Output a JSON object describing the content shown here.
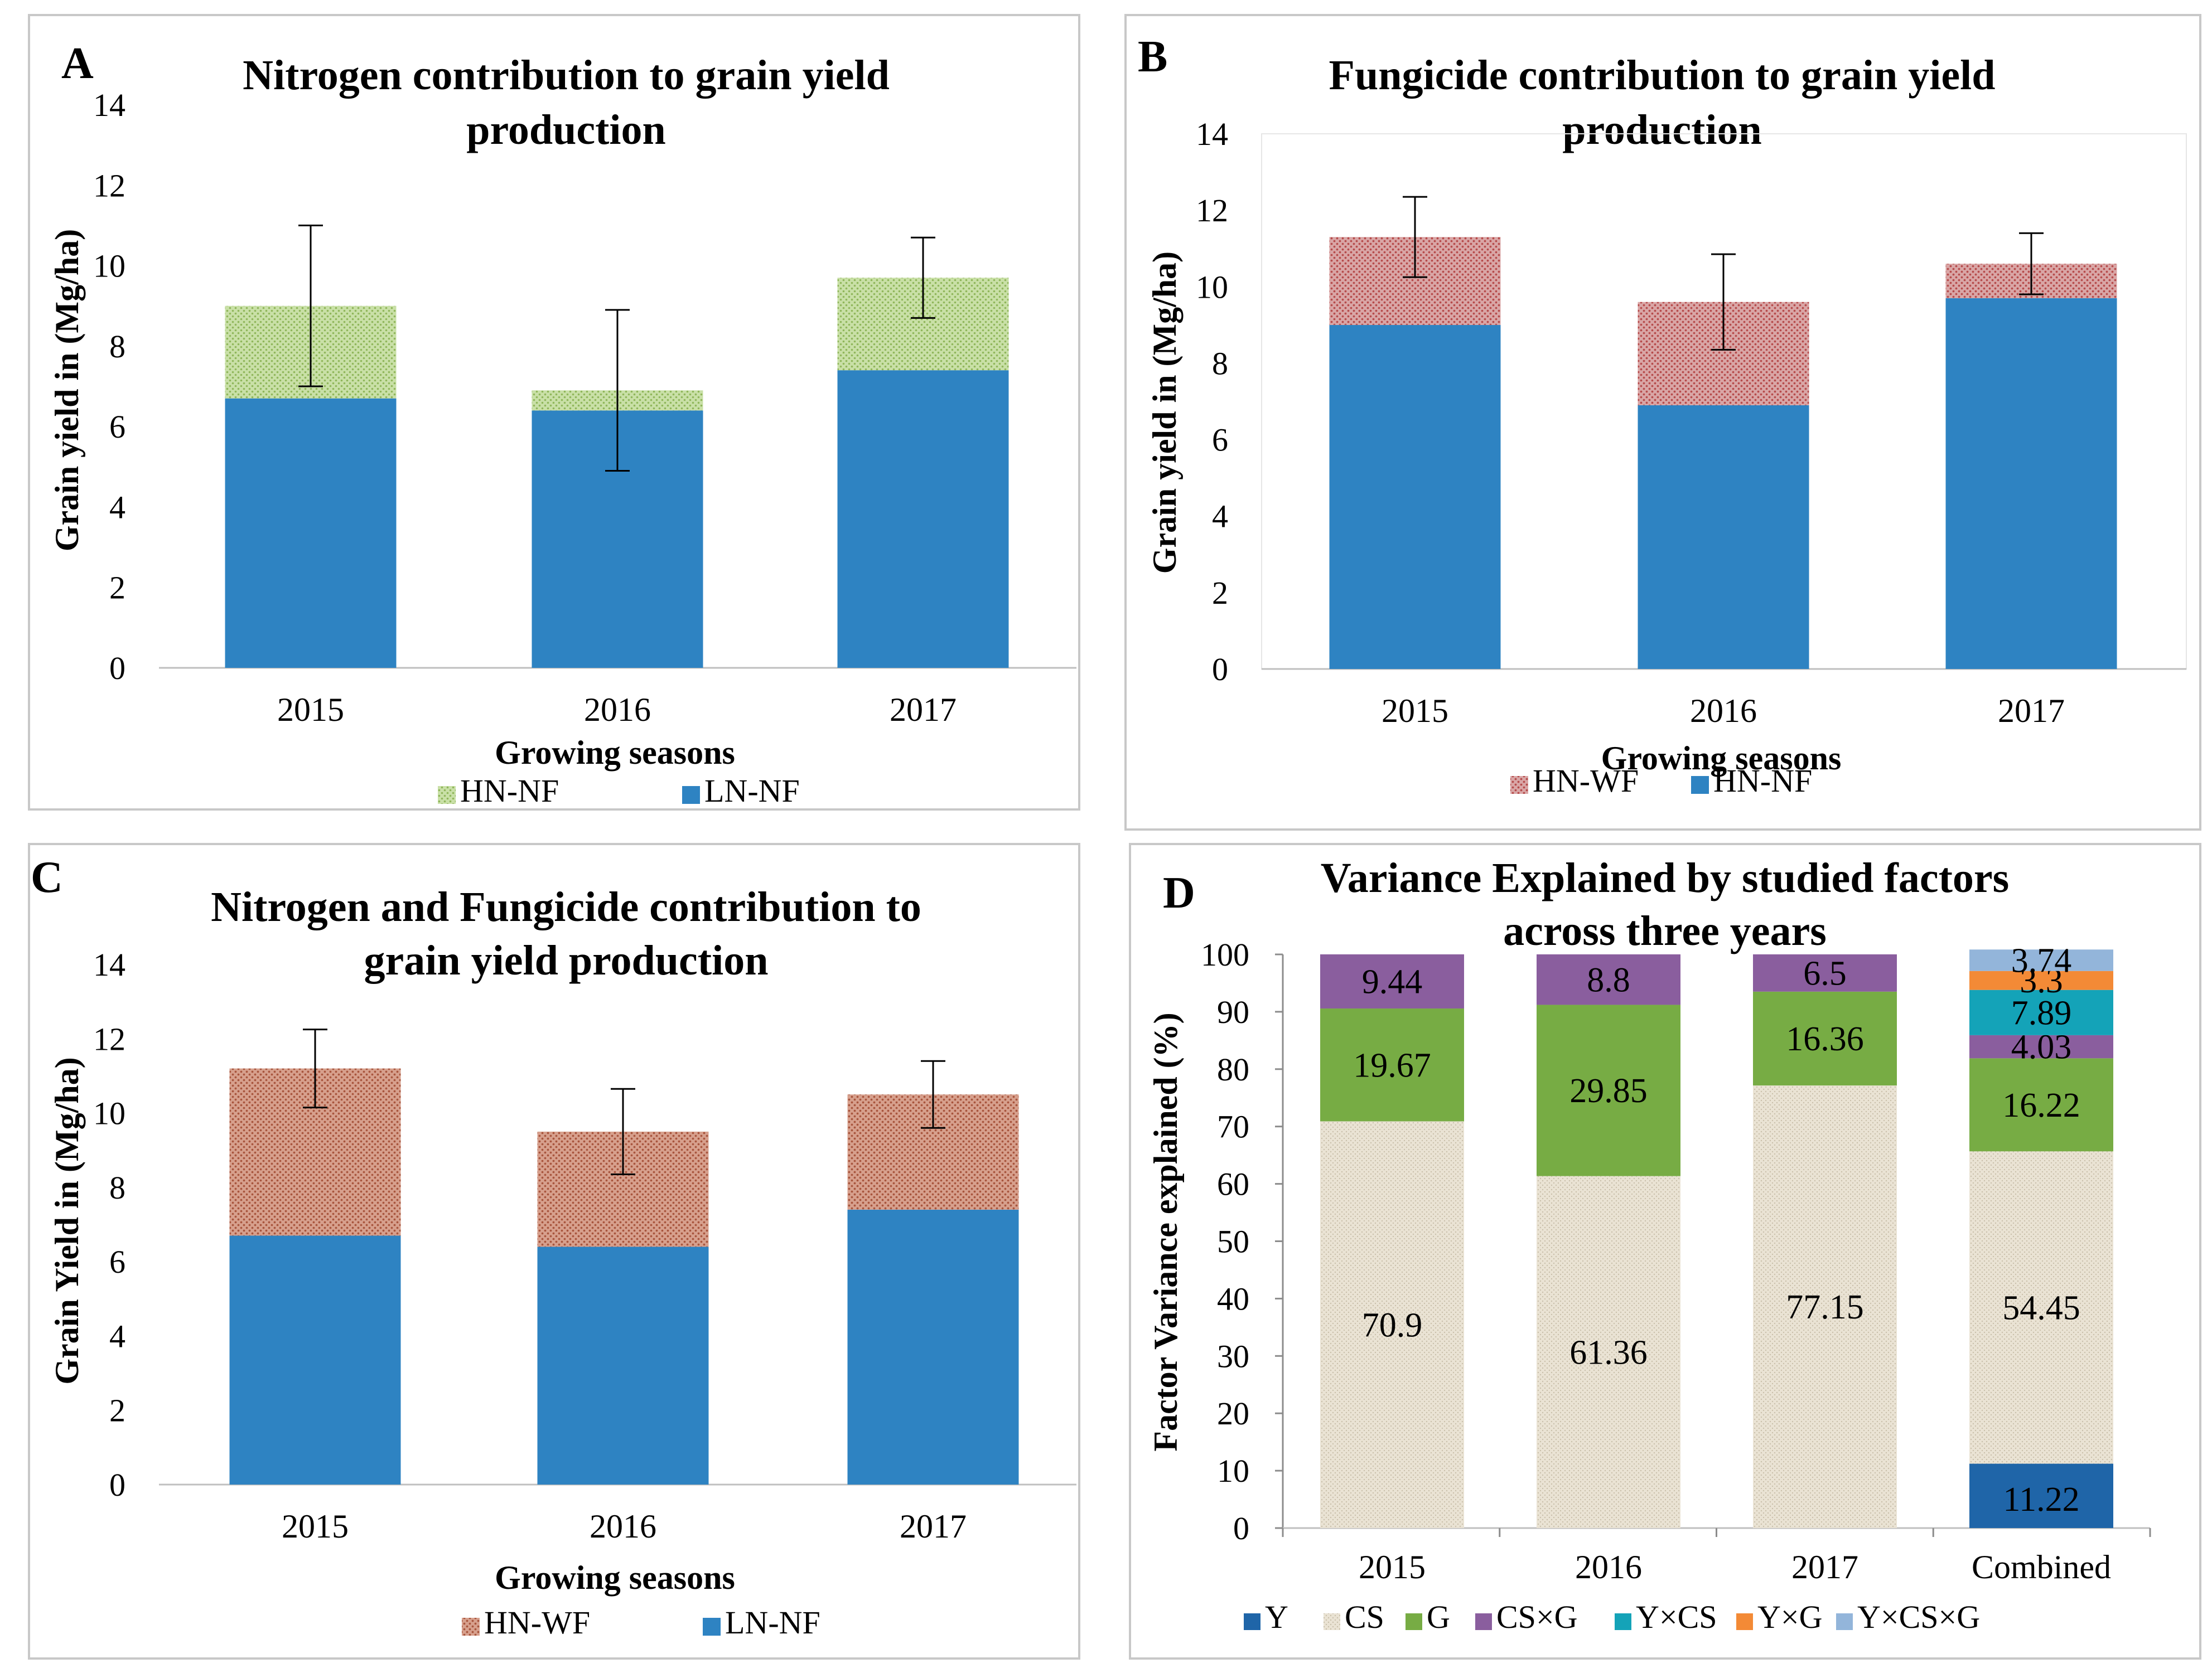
{
  "colors": {
    "blue": "#2E83C2",
    "green_hatch_bg": "#C9E0A7",
    "green_hatch_fg": "#8FB65A",
    "red_hatch_bg": "#D9A6A6",
    "red_hatch_fg": "#B64B4B",
    "brown_hatch_bg": "#D7A08D",
    "brown_hatch_fg": "#A8553D",
    "cs_bg": "#EAE3D4",
    "cs_fg": "#C9BFAA",
    "g_green": "#77AC44",
    "purple": "#8A5E9E",
    "cyan": "#14A3B8",
    "orange": "#F38A36",
    "lightblue": "#93B5DA",
    "y_blue": "#1F65A8"
  },
  "chart_data": [
    {
      "panel": "A",
      "type": "bar",
      "stacked": true,
      "title": "Nitrogen contribution to grain yield production",
      "title_lines": [
        "Nitrogen contribution to grain yield",
        "production"
      ],
      "xlabel": "Growing seasons",
      "ylabel": "Grain yield in (Mg/ha)",
      "ylim": [
        0,
        14
      ],
      "yticks": [
        0,
        2,
        4,
        6,
        8,
        10,
        12,
        14
      ],
      "categories": [
        "2015",
        "2016",
        "2017"
      ],
      "series": [
        {
          "name": "LN-NF",
          "values": [
            6.7,
            6.4,
            7.4
          ],
          "fill": "blue"
        },
        {
          "name": "HN-NF",
          "values": [
            2.3,
            0.5,
            2.3
          ],
          "fill": "green_hatch"
        }
      ],
      "error_bars": [
        2.0,
        2.0,
        1.0
      ],
      "legend": [
        {
          "name": "HN-NF",
          "fill": "green_hatch"
        },
        {
          "name": "LN-NF",
          "fill": "blue"
        }
      ]
    },
    {
      "panel": "B",
      "type": "bar",
      "stacked": true,
      "title": "Fungicide contribution to grain yield production",
      "title_lines": [
        "Fungicide contribution to grain yield",
        "production"
      ],
      "xlabel": "Growing seasons",
      "ylabel": "Grain yield in (Mg/ha)",
      "ylim": [
        0,
        14
      ],
      "yticks": [
        0,
        2,
        4,
        6,
        8,
        10,
        12,
        14
      ],
      "categories": [
        "2015",
        "2016",
        "2017"
      ],
      "series": [
        {
          "name": "HN-NF",
          "values": [
            9.0,
            6.9,
            9.7
          ],
          "fill": "blue"
        },
        {
          "name": "HN-WF",
          "values": [
            2.3,
            2.7,
            0.9
          ],
          "fill": "red_hatch"
        }
      ],
      "error_bars": [
        1.05,
        1.25,
        0.8
      ],
      "legend": [
        {
          "name": "HN-WF",
          "fill": "red_hatch"
        },
        {
          "name": "HN-NF",
          "fill": "blue"
        }
      ]
    },
    {
      "panel": "C",
      "type": "bar",
      "stacked": true,
      "title": "Nitrogen and Fungicide contribution to grain yield production",
      "title_lines": [
        "Nitrogen and Fungicide contribution to",
        "grain yield production"
      ],
      "xlabel": "Growing seasons",
      "ylabel": "Grain Yield in (Mg/ha)",
      "ylim": [
        0,
        14
      ],
      "yticks": [
        0,
        2,
        4,
        6,
        8,
        10,
        12,
        14
      ],
      "categories": [
        "2015",
        "2016",
        "2017"
      ],
      "series": [
        {
          "name": "LN-NF",
          "values": [
            6.7,
            6.4,
            7.4
          ],
          "fill": "blue"
        },
        {
          "name": "HN-WF",
          "values": [
            4.5,
            3.1,
            3.1
          ],
          "fill": "brown_hatch"
        }
      ],
      "error_bars": [
        1.05,
        1.15,
        0.9
      ],
      "legend": [
        {
          "name": "HN-WF",
          "fill": "brown_hatch"
        },
        {
          "name": "LN-NF",
          "fill": "blue"
        }
      ]
    },
    {
      "panel": "D",
      "type": "bar",
      "stacked": true,
      "title": "Variance Explained by studied factors across three years",
      "title_lines": [
        "Variance Explained by studied factors",
        "across three years"
      ],
      "xlabel": "",
      "ylabel": "Factor Variance explained (%)",
      "ylim": [
        0,
        100
      ],
      "yticks": [
        0,
        10,
        20,
        30,
        40,
        50,
        60,
        70,
        80,
        90,
        100
      ],
      "categories": [
        "2015",
        "2016",
        "2017",
        "Combined"
      ],
      "series": [
        {
          "name": "Y",
          "values": [
            0,
            0,
            0,
            11.22
          ],
          "labels": [
            "",
            "",
            "",
            "11.22"
          ],
          "fill": "y_blue",
          "label_color": "#000000"
        },
        {
          "name": "CS",
          "values": [
            70.9,
            61.36,
            77.15,
            54.45
          ],
          "labels": [
            "70.9",
            "61.36",
            "77.15",
            "54.45"
          ],
          "fill": "cs_hatch",
          "label_color": "#000000"
        },
        {
          "name": "G",
          "values": [
            19.67,
            29.85,
            16.36,
            16.22
          ],
          "labels": [
            "19.67",
            "29.85",
            "16.36",
            "16.22"
          ],
          "fill": "g_green",
          "label_color": "#000000"
        },
        {
          "name": "CS×G",
          "values": [
            9.44,
            8.8,
            6.5,
            4.03
          ],
          "labels": [
            "9.44",
            "8.8",
            "6.5",
            "4.03"
          ],
          "fill": "purple",
          "label_color": "#000000"
        },
        {
          "name": "Y×CS",
          "values": [
            0,
            0,
            0,
            7.89
          ],
          "labels": [
            "",
            "",
            "",
            "7.89"
          ],
          "fill": "cyan",
          "label_color": "#000000"
        },
        {
          "name": "Y×G",
          "values": [
            0,
            0,
            0,
            3.3
          ],
          "labels": [
            "",
            "",
            "",
            "3.3"
          ],
          "fill": "orange",
          "label_color": "#000000"
        },
        {
          "name": "Y×CS×G",
          "values": [
            0,
            0,
            0,
            3.74
          ],
          "labels": [
            "",
            "",
            "",
            "3.74"
          ],
          "fill": "lightblue",
          "label_color": "#000000"
        }
      ],
      "legend": [
        {
          "name": "Y",
          "fill": "y_blue"
        },
        {
          "name": "CS",
          "fill": "cs_hatch"
        },
        {
          "name": "G",
          "fill": "g_green"
        },
        {
          "name": "CS×G",
          "fill": "purple"
        },
        {
          "name": "Y×CS",
          "fill": "cyan"
        },
        {
          "name": "Y×G",
          "fill": "orange"
        },
        {
          "name": "Y×CS×G",
          "fill": "lightblue"
        }
      ]
    }
  ]
}
